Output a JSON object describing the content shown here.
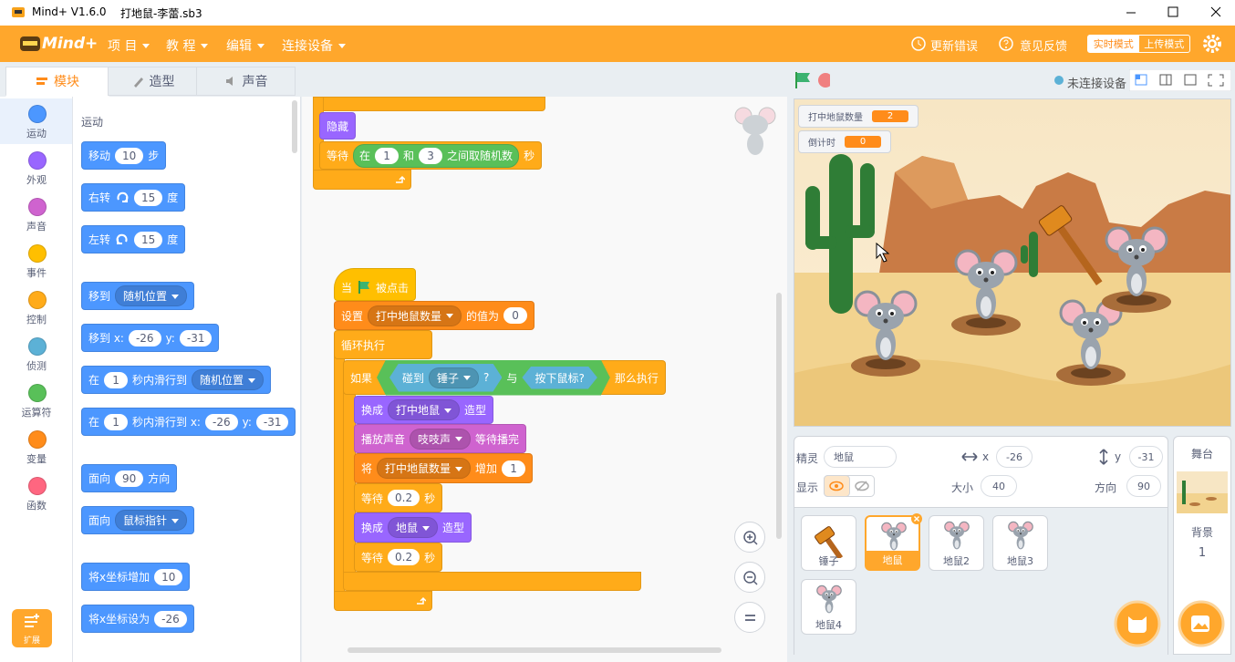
{
  "title_bar": {
    "app": "Mind+ V1.6.0",
    "file": "打地鼠-李蕾.sb3"
  },
  "menu": {
    "logo": "Mind+",
    "items": [
      "项 目",
      "教 程",
      "编辑",
      "连接设备"
    ],
    "actions": [
      "更新错误",
      "意见反馈"
    ],
    "modes": [
      "实时模式",
      "上传模式"
    ]
  },
  "tabs": [
    "模块",
    "造型",
    "声音"
  ],
  "categories": [
    "运动",
    "外观",
    "声音",
    "事件",
    "控制",
    "侦测",
    "运算符",
    "变量",
    "函数"
  ],
  "extension": "扩展",
  "palette": {
    "heading": "运动",
    "blocks": [
      [
        "移动",
        {
          "in": 10
        },
        "步"
      ],
      [
        "右转",
        {
          "in": 15
        },
        "度"
      ],
      [
        "左转",
        {
          "in": 15
        },
        "度"
      ],
      [
        "移到",
        {
          "dd": "随机位置"
        }
      ],
      [
        "移到 x:",
        {
          "in": -26
        },
        "y:",
        {
          "in": -31
        }
      ],
      [
        "在",
        {
          "in": 1
        },
        "秒内滑行到",
        {
          "dd": "随机位置"
        }
      ],
      [
        "在",
        {
          "in": 1
        },
        "秒内滑行到 x:",
        {
          "in": -26
        },
        "y:",
        {
          "in": -31
        }
      ],
      [
        "面向",
        {
          "in": 90
        },
        "方向"
      ],
      [
        "面向",
        {
          "dd": "鼠标指针"
        }
      ],
      [
        "将x坐标增加",
        {
          "in": 10
        }
      ],
      [
        "将x坐标设为",
        {
          "in": -26
        }
      ]
    ]
  },
  "script": {
    "blocks": [
      [
        "隐藏"
      ],
      [
        "等待",
        {
          "rep": [
            "在",
            {
              "in": 1
            },
            "和",
            {
              "in": 3
            },
            "之间取随机数"
          ]
        },
        "秒"
      ],
      [
        "当",
        "被点击"
      ],
      [
        "设置",
        {
          "dd": "打中地鼠数量"
        },
        "的值为",
        {
          "in": 0
        }
      ],
      [
        "循环执行"
      ],
      [
        "如果",
        {
          "hex": [
            {
              "hex": [
                "碰到",
                {
                  "dd": "锤子"
                },
                "?"
              ]
            },
            "与",
            {
              "hex": [
                "按下鼠标?"
              ]
            }
          ]
        },
        "那么执行"
      ],
      [
        "换成",
        {
          "dd": "打中地鼠"
        },
        "造型"
      ],
      [
        "播放声音",
        {
          "dd": "吱吱声"
        },
        "等待播完"
      ],
      [
        "将",
        {
          "dd": "打中地鼠数量"
        },
        "增加",
        {
          "in": 1
        }
      ],
      [
        "等待",
        {
          "in": 0.2
        },
        "秒"
      ],
      [
        "换成",
        {
          "dd": "地鼠"
        },
        "造型"
      ],
      [
        "等待",
        {
          "in": 0.2
        },
        "秒"
      ]
    ]
  },
  "stage": {
    "status": "未连接设备",
    "monitors": [
      {
        "label": "打中地鼠数量",
        "value": 2
      },
      {
        "label": "倒计时",
        "value": 0
      }
    ]
  },
  "sprite_info": {
    "sprite_label": "精灵",
    "name": "地鼠",
    "x_label": "x",
    "x": -26,
    "y_label": "y",
    "y": -31,
    "show_label": "显示",
    "size_label": "大小",
    "size": 40,
    "direction_label": "方向",
    "direction": 90
  },
  "sprites": [
    "锤子",
    "地鼠",
    "地鼠2",
    "地鼠3",
    "地鼠4"
  ],
  "stage_panel": {
    "title": "舞台",
    "backdrop_label": "背景",
    "backdrop_count": 1
  }
}
